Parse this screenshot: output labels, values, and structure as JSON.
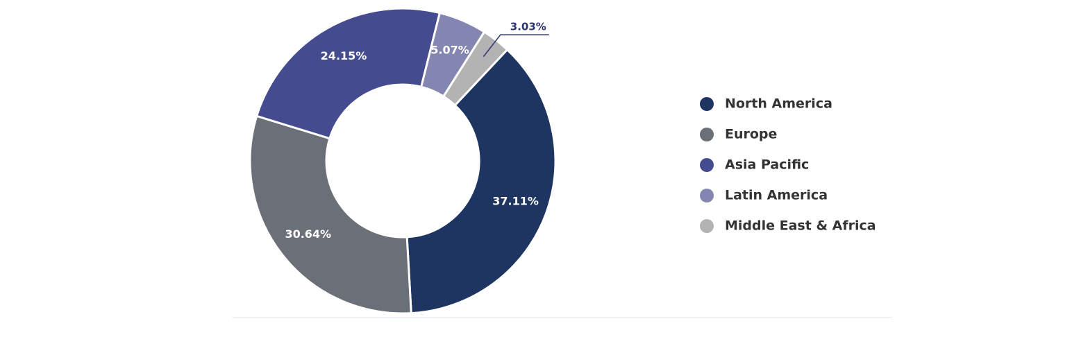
{
  "chart_data": {
    "type": "donut",
    "categories": [
      "North America",
      "Europe",
      "Asia Pacific",
      "Latin America",
      "Middle East & Africa"
    ],
    "values": [
      37.11,
      30.64,
      24.15,
      5.07,
      3.03
    ],
    "value_labels": [
      "37.11%",
      "30.64%",
      "24.15%",
      "5.07%",
      "3.03%"
    ],
    "colors": [
      "#1e3461",
      "#6b6f78",
      "#454b8f",
      "#8286b0",
      "#b3b3b3"
    ],
    "legend": "right"
  }
}
